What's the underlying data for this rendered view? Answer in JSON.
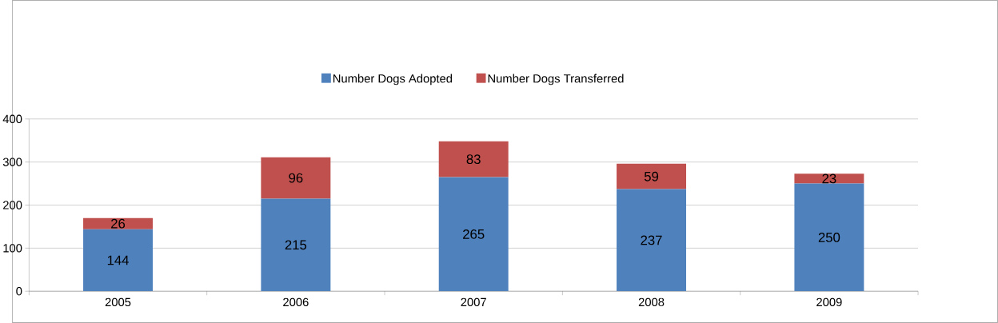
{
  "chart_data": {
    "type": "bar",
    "stacked": true,
    "categories": [
      "2005",
      "2006",
      "2007",
      "2008",
      "2009"
    ],
    "series": [
      {
        "name": "Number Dogs Adopted",
        "color": "#4f81bd",
        "values": [
          144,
          215,
          265,
          237,
          250
        ]
      },
      {
        "name": "Number Dogs Transferred",
        "color": "#c0504d",
        "values": [
          26,
          96,
          83,
          59,
          23
        ]
      }
    ],
    "ylim": [
      0,
      400
    ],
    "yticks": [
      0,
      100,
      200,
      300,
      400
    ],
    "grid": "y",
    "legend": "top",
    "data_labels": true
  }
}
